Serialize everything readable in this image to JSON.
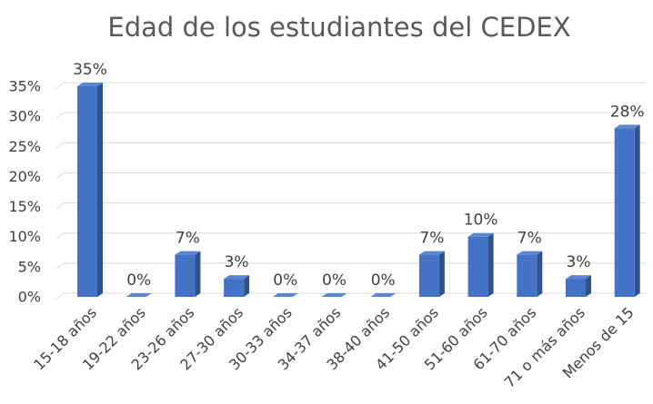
{
  "chart_data": {
    "type": "bar3d",
    "title": "Edad de los estudiantes del CEDEX",
    "categories": [
      "15-18 años",
      "19-22 años",
      "23-26 años",
      "27-30 años",
      "30-33 años",
      "34-37 años",
      "38-40 años",
      "41-50 años",
      "51-60 años",
      "61-70 años",
      "71 o más años",
      "Menos de 15"
    ],
    "values": [
      35,
      0,
      7,
      3,
      0,
      0,
      0,
      7,
      10,
      7,
      3,
      28
    ],
    "value_labels": [
      "35%",
      "0%",
      "7%",
      "3%",
      "0%",
      "0%",
      "0%",
      "7%",
      "10%",
      "7%",
      "3%",
      "28%"
    ],
    "color": "#4472c4",
    "ylim": [
      0,
      35
    ],
    "yticks": [
      {
        "value": 0,
        "label": "0%"
      },
      {
        "value": 5,
        "label": "5%"
      },
      {
        "value": 10,
        "label": "10%"
      },
      {
        "value": 15,
        "label": "15%"
      },
      {
        "value": 20,
        "label": "20%"
      },
      {
        "value": 25,
        "label": "25%"
      },
      {
        "value": 30,
        "label": "30%"
      },
      {
        "value": 35,
        "label": "35%"
      }
    ],
    "grid": true
  }
}
